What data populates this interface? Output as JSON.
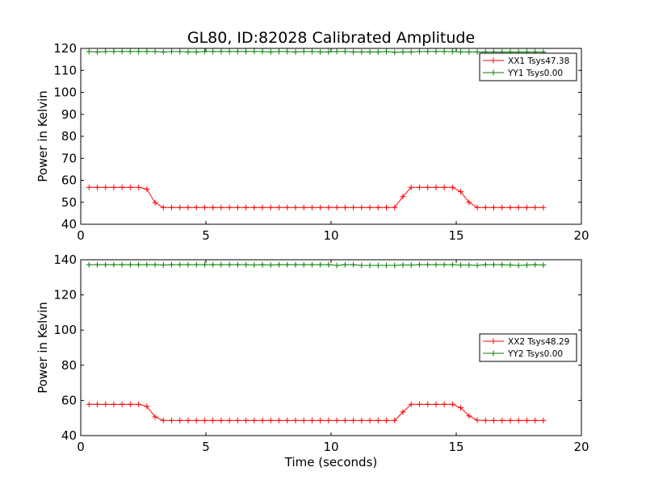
{
  "figure": {
    "title": "GL80, ID:82028 Calibrated Amplitude"
  },
  "chart_data": [
    {
      "type": "line",
      "title": "GL80, ID:82028 Calibrated Amplitude",
      "xlabel": "",
      "ylabel": "Power in Kelvin",
      "xlim": [
        0,
        20
      ],
      "ylim": [
        40,
        120
      ],
      "xticks": [
        "0",
        "5",
        "10",
        "15",
        "20"
      ],
      "yticks": [
        "40",
        "50",
        "60",
        "70",
        "80",
        "90",
        "100",
        "110",
        "120"
      ],
      "grid": false,
      "legend_position": "top-right",
      "x": [
        0.33,
        0.66,
        0.99,
        1.32,
        1.65,
        1.98,
        2.31,
        2.64,
        2.97,
        3.3,
        3.63,
        3.96,
        4.29,
        4.62,
        4.95,
        5.28,
        5.61,
        5.94,
        6.27,
        6.6,
        6.93,
        7.26,
        7.59,
        7.92,
        8.25,
        8.58,
        8.91,
        9.24,
        9.57,
        9.9,
        10.23,
        10.56,
        10.89,
        11.22,
        11.55,
        11.88,
        12.21,
        12.54,
        12.87,
        13.2,
        13.53,
        13.86,
        14.19,
        14.52,
        14.85,
        15.18,
        15.51,
        15.84,
        16.17,
        16.5,
        16.83,
        17.16,
        17.49,
        17.82,
        18.15,
        18.48
      ],
      "series": [
        {
          "name": "XX1 Tsys47.38",
          "color": "#ff0000",
          "values": [
            56.8,
            56.8,
            56.8,
            56.8,
            56.8,
            56.8,
            56.8,
            56.0,
            49.8,
            47.6,
            47.6,
            47.6,
            47.6,
            47.6,
            47.6,
            47.6,
            47.6,
            47.6,
            47.6,
            47.6,
            47.6,
            47.6,
            47.6,
            47.6,
            47.6,
            47.6,
            47.6,
            47.6,
            47.6,
            47.6,
            47.6,
            47.6,
            47.6,
            47.6,
            47.6,
            47.6,
            47.6,
            47.6,
            52.6,
            56.8,
            56.8,
            56.8,
            56.8,
            56.8,
            56.8,
            54.8,
            50.0,
            47.6,
            47.6,
            47.6,
            47.6,
            47.6,
            47.6,
            47.6,
            47.6,
            47.6
          ]
        },
        {
          "name": "YY1 Tsys0.00",
          "color": "#008000",
          "values": [
            118.6,
            118.4,
            118.6,
            118.6,
            118.6,
            118.6,
            118.6,
            118.6,
            118.6,
            118.4,
            118.6,
            118.6,
            118.4,
            118.4,
            118.6,
            118.6,
            118.6,
            118.6,
            118.6,
            118.6,
            118.6,
            118.6,
            118.4,
            118.6,
            118.6,
            118.4,
            118.6,
            118.6,
            118.4,
            118.4,
            118.6,
            118.6,
            118.4,
            118.4,
            118.4,
            118.4,
            118.6,
            118.2,
            118.4,
            118.4,
            118.6,
            118.6,
            118.6,
            118.6,
            118.6,
            118.4,
            118.4,
            118.4,
            118.4,
            118.4,
            118.4,
            118.4,
            118.4,
            118.4,
            118.4,
            118.4
          ]
        }
      ]
    },
    {
      "type": "line",
      "title": "",
      "xlabel": "Time (seconds)",
      "ylabel": "Power in Kelvin",
      "xlim": [
        0,
        20
      ],
      "ylim": [
        40,
        140
      ],
      "xticks": [
        "0",
        "5",
        "10",
        "15",
        "20"
      ],
      "yticks": [
        "40",
        "60",
        "80",
        "100",
        "120",
        "140"
      ],
      "grid": false,
      "legend_position": "center-right",
      "x": [
        0.33,
        0.66,
        0.99,
        1.32,
        1.65,
        1.98,
        2.31,
        2.64,
        2.97,
        3.3,
        3.63,
        3.96,
        4.29,
        4.62,
        4.95,
        5.28,
        5.61,
        5.94,
        6.27,
        6.6,
        6.93,
        7.26,
        7.59,
        7.92,
        8.25,
        8.58,
        8.91,
        9.24,
        9.57,
        9.9,
        10.23,
        10.56,
        10.89,
        11.22,
        11.55,
        11.88,
        12.21,
        12.54,
        12.87,
        13.2,
        13.53,
        13.86,
        14.19,
        14.52,
        14.85,
        15.18,
        15.51,
        15.84,
        16.17,
        16.5,
        16.83,
        17.16,
        17.49,
        17.82,
        18.15,
        18.48
      ],
      "series": [
        {
          "name": "XX2 Tsys48.29",
          "color": "#ff0000",
          "values": [
            57.8,
            57.8,
            57.8,
            57.8,
            57.8,
            57.8,
            57.8,
            56.6,
            50.6,
            48.6,
            48.6,
            48.6,
            48.6,
            48.6,
            48.6,
            48.6,
            48.6,
            48.6,
            48.6,
            48.6,
            48.6,
            48.6,
            48.6,
            48.6,
            48.6,
            48.6,
            48.6,
            48.6,
            48.6,
            48.6,
            48.6,
            48.6,
            48.6,
            48.6,
            48.6,
            48.6,
            48.6,
            48.6,
            53.4,
            57.8,
            57.8,
            57.8,
            57.8,
            57.8,
            57.8,
            55.8,
            51.2,
            48.8,
            48.6,
            48.6,
            48.6,
            48.6,
            48.6,
            48.6,
            48.6,
            48.6
          ]
        },
        {
          "name": "YY2 Tsys0.00",
          "color": "#008000",
          "values": [
            137.2,
            137.2,
            137.2,
            137.2,
            137.2,
            137.2,
            137.2,
            137.2,
            137.2,
            137.0,
            137.2,
            137.2,
            137.2,
            137.2,
            137.2,
            137.2,
            137.2,
            137.2,
            137.2,
            137.2,
            137.0,
            137.2,
            137.0,
            137.2,
            137.2,
            137.2,
            137.2,
            137.2,
            137.2,
            137.2,
            136.8,
            137.2,
            137.2,
            136.8,
            136.8,
            136.8,
            136.8,
            136.8,
            137.0,
            137.0,
            137.2,
            137.2,
            137.2,
            137.2,
            137.2,
            137.0,
            137.0,
            136.8,
            137.2,
            137.2,
            137.2,
            137.0,
            136.8,
            137.0,
            137.2,
            137.0
          ]
        }
      ]
    }
  ]
}
